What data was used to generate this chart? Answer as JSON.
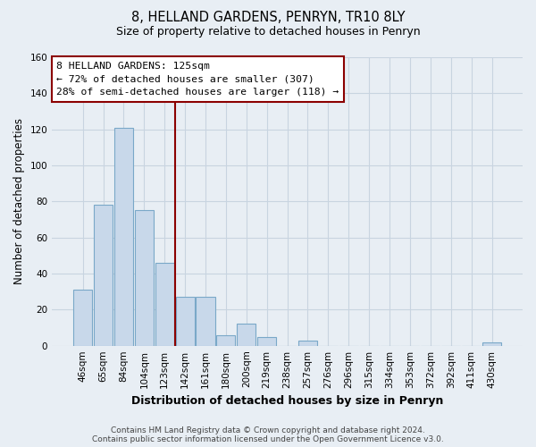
{
  "title": "8, HELLAND GARDENS, PENRYN, TR10 8LY",
  "subtitle": "Size of property relative to detached houses in Penryn",
  "xlabel": "Distribution of detached houses by size in Penryn",
  "ylabel": "Number of detached properties",
  "bin_labels": [
    "46sqm",
    "65sqm",
    "84sqm",
    "104sqm",
    "123sqm",
    "142sqm",
    "161sqm",
    "180sqm",
    "200sqm",
    "219sqm",
    "238sqm",
    "257sqm",
    "276sqm",
    "296sqm",
    "315sqm",
    "334sqm",
    "353sqm",
    "372sqm",
    "392sqm",
    "411sqm",
    "430sqm"
  ],
  "bar_heights": [
    31,
    78,
    121,
    75,
    46,
    27,
    27,
    6,
    12,
    5,
    0,
    3,
    0,
    0,
    0,
    0,
    0,
    0,
    0,
    0,
    2
  ],
  "bar_color": "#c8d8ea",
  "bar_edge_color": "#7aa8c8",
  "property_line_color": "#8b0000",
  "ylim": [
    0,
    160
  ],
  "yticks": [
    0,
    20,
    40,
    60,
    80,
    100,
    120,
    140,
    160
  ],
  "annotation_title": "8 HELLAND GARDENS: 125sqm",
  "annotation_line1": "← 72% of detached houses are smaller (307)",
  "annotation_line2": "28% of semi-detached houses are larger (118) →",
  "annotation_box_color": "white",
  "annotation_box_edge": "#8b0000",
  "footer_line1": "Contains HM Land Registry data © Crown copyright and database right 2024.",
  "footer_line2": "Contains public sector information licensed under the Open Government Licence v3.0.",
  "background_color": "#e8eef4",
  "grid_color": "#c8d4e0"
}
